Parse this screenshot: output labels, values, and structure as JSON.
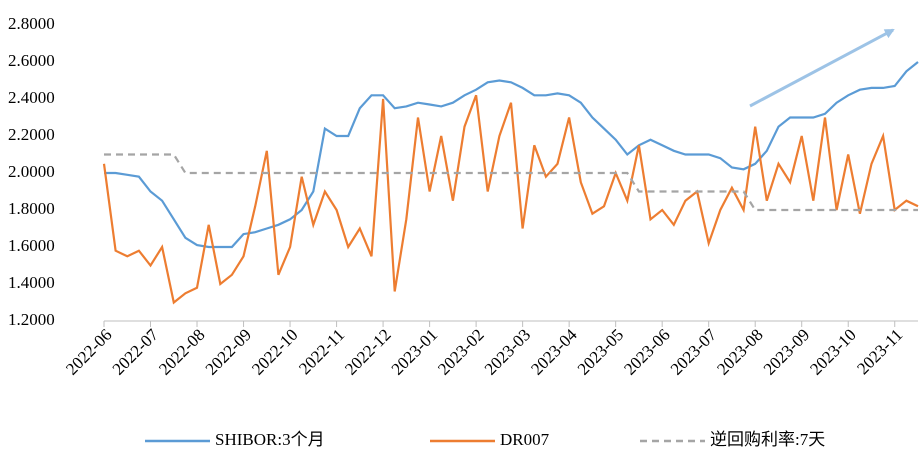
{
  "chart_data": {
    "type": "line",
    "x": [
      0,
      0.25,
      0.5,
      0.75,
      1,
      1.25,
      1.5,
      1.75,
      2,
      2.25,
      2.5,
      2.75,
      3,
      3.25,
      3.5,
      3.75,
      4,
      4.25,
      4.5,
      4.75,
      5,
      5.25,
      5.5,
      5.75,
      6,
      6.25,
      6.5,
      6.75,
      7,
      7.25,
      7.5,
      7.75,
      8,
      8.25,
      8.5,
      8.75,
      9,
      9.25,
      9.5,
      9.75,
      10,
      10.25,
      10.5,
      10.75,
      11,
      11.25,
      11.5,
      11.75,
      12,
      12.25,
      12.5,
      12.75,
      13,
      13.25,
      13.5,
      13.75,
      14,
      14.25,
      14.5,
      14.75,
      15,
      15.25,
      15.5,
      15.75,
      16,
      16.25,
      16.5,
      16.75,
      17,
      17.25,
      17.5
    ],
    "series": [
      {
        "name": "SHIBOR:3个月",
        "color": "#5b9bd5",
        "dash": false,
        "values": [
          2.0,
          2.0,
          1.99,
          1.98,
          1.9,
          1.85,
          1.75,
          1.65,
          1.61,
          1.6,
          1.6,
          1.6,
          1.67,
          1.68,
          1.7,
          1.72,
          1.75,
          1.8,
          1.9,
          2.24,
          2.2,
          2.2,
          2.35,
          2.42,
          2.42,
          2.35,
          2.36,
          2.38,
          2.37,
          2.36,
          2.38,
          2.42,
          2.45,
          2.49,
          2.5,
          2.49,
          2.46,
          2.42,
          2.42,
          2.43,
          2.42,
          2.38,
          2.3,
          2.24,
          2.18,
          2.1,
          2.15,
          2.18,
          2.15,
          2.12,
          2.1,
          2.1,
          2.1,
          2.08,
          2.03,
          2.02,
          2.05,
          2.12,
          2.25,
          2.3,
          2.3,
          2.3,
          2.32,
          2.38,
          2.42,
          2.45,
          2.46,
          2.46,
          2.47,
          2.55,
          2.6
        ]
      },
      {
        "name": "DR007",
        "color": "#ed7d31",
        "dash": false,
        "values": [
          2.05,
          1.58,
          1.55,
          1.58,
          1.5,
          1.6,
          1.3,
          1.35,
          1.38,
          1.72,
          1.4,
          1.45,
          1.55,
          1.82,
          2.12,
          1.45,
          1.6,
          1.98,
          1.72,
          1.9,
          1.8,
          1.6,
          1.7,
          1.55,
          2.4,
          1.36,
          1.75,
          2.3,
          1.9,
          2.2,
          1.85,
          2.25,
          2.42,
          1.9,
          2.2,
          2.38,
          1.7,
          2.15,
          1.98,
          2.05,
          2.3,
          1.95,
          1.78,
          1.82,
          2.0,
          1.85,
          2.15,
          1.75,
          1.8,
          1.72,
          1.85,
          1.9,
          1.62,
          1.8,
          1.92,
          1.8,
          2.25,
          1.85,
          2.05,
          1.95,
          2.2,
          1.85,
          2.3,
          1.8,
          2.1,
          1.78,
          2.05,
          2.2,
          1.8,
          1.85,
          1.82
        ]
      },
      {
        "name": "逆回购利率:7天",
        "color": "#a5a5a5",
        "dash": true,
        "values": [
          2.1,
          2.1,
          2.1,
          2.1,
          2.1,
          2.1,
          2.1,
          2.0,
          2.0,
          2.0,
          2.0,
          2.0,
          2.0,
          2.0,
          2.0,
          2.0,
          2.0,
          2.0,
          2.0,
          2.0,
          2.0,
          2.0,
          2.0,
          2.0,
          2.0,
          2.0,
          2.0,
          2.0,
          2.0,
          2.0,
          2.0,
          2.0,
          2.0,
          2.0,
          2.0,
          2.0,
          2.0,
          2.0,
          2.0,
          2.0,
          2.0,
          2.0,
          2.0,
          2.0,
          2.0,
          2.0,
          1.9,
          1.9,
          1.9,
          1.9,
          1.9,
          1.9,
          1.9,
          1.9,
          1.9,
          1.9,
          1.8,
          1.8,
          1.8,
          1.8,
          1.8,
          1.8,
          1.8,
          1.8,
          1.8,
          1.8,
          1.8,
          1.8,
          1.8,
          1.8,
          1.8
        ]
      }
    ],
    "xlim": [
      0,
      17.5
    ],
    "xticks": [
      {
        "value": 0,
        "label": "2022-06"
      },
      {
        "value": 1,
        "label": "2022-07"
      },
      {
        "value": 2,
        "label": "2022-08"
      },
      {
        "value": 3,
        "label": "2022-09"
      },
      {
        "value": 4,
        "label": "2022-10"
      },
      {
        "value": 5,
        "label": "2022-11"
      },
      {
        "value": 6,
        "label": "2022-12"
      },
      {
        "value": 7,
        "label": "2023-01"
      },
      {
        "value": 8,
        "label": "2023-02"
      },
      {
        "value": 9,
        "label": "2023-03"
      },
      {
        "value": 10,
        "label": "2023-04"
      },
      {
        "value": 11,
        "label": "2023-05"
      },
      {
        "value": 12,
        "label": "2023-06"
      },
      {
        "value": 13,
        "label": "2023-07"
      },
      {
        "value": 14,
        "label": "2023-08"
      },
      {
        "value": 15,
        "label": "2023-09"
      },
      {
        "value": 16,
        "label": "2023-10"
      },
      {
        "value": 17,
        "label": "2023-11"
      }
    ],
    "ylim": [
      1.2,
      2.8
    ],
    "yticks": [
      {
        "value": 1.2,
        "label": "1.2000"
      },
      {
        "value": 1.4,
        "label": "1.4000"
      },
      {
        "value": 1.6,
        "label": "1.6000"
      },
      {
        "value": 1.8,
        "label": "1.8000"
      },
      {
        "value": 2.0,
        "label": "2.0000"
      },
      {
        "value": 2.2,
        "label": "2.2000"
      },
      {
        "value": 2.4,
        "label": "2.4000"
      },
      {
        "value": 2.6,
        "label": "2.6000"
      },
      {
        "value": 2.8,
        "label": "2.8000"
      }
    ],
    "grid": false,
    "legend": "bottom"
  }
}
